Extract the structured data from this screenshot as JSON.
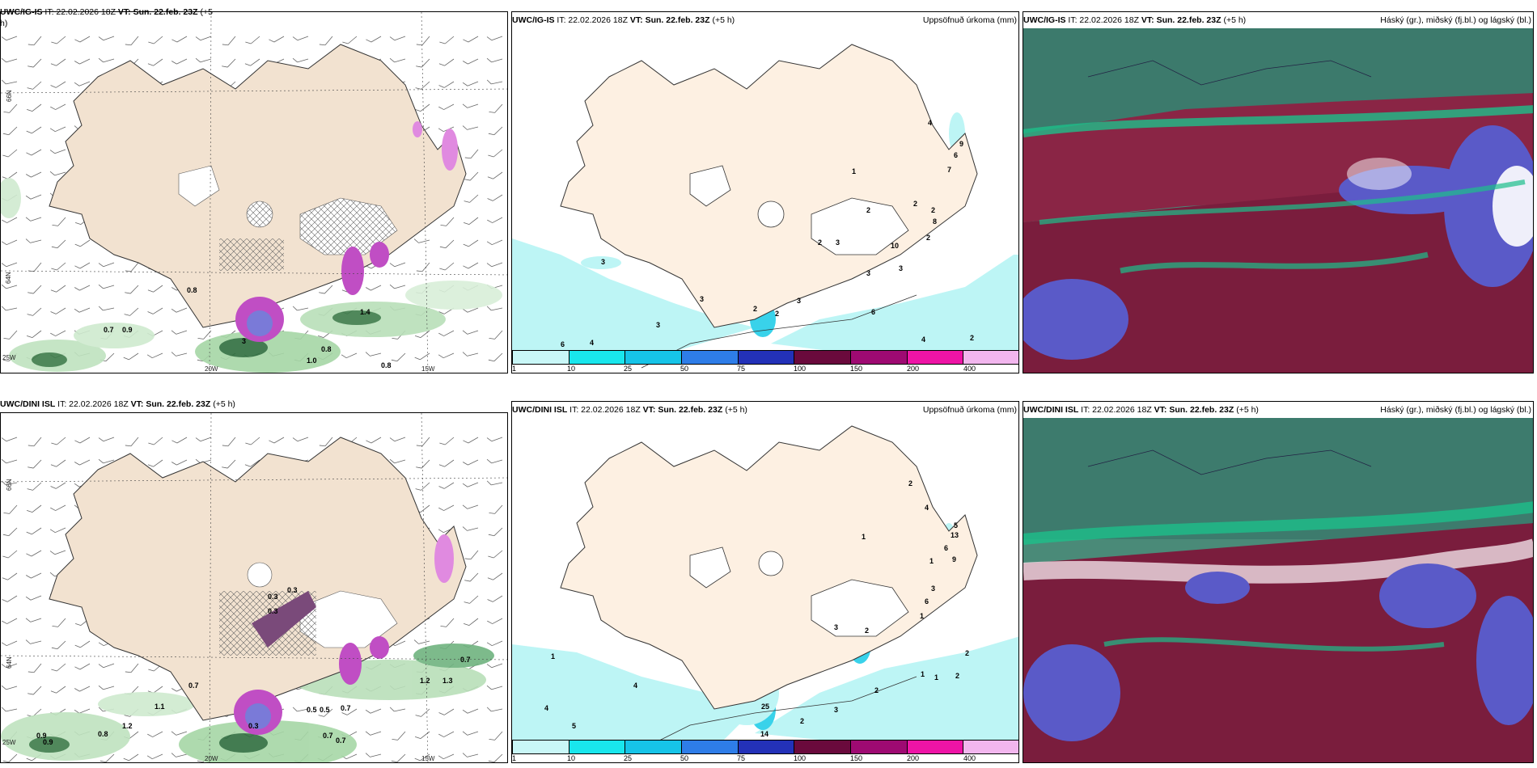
{
  "panels": [
    {
      "id": "ig-wind",
      "model": "UWC/IG-IS",
      "it": "IT: 22.02.2026 18Z",
      "vt": "VT: Sun. 22.feb. 23Z",
      "lead": "(+5",
      "lead2": "h)",
      "right": ""
    },
    {
      "id": "ig-precip",
      "model": "UWC/IG-IS",
      "it": "IT: 22.02.2026 18Z",
      "vt": "VT: Sun. 22.feb. 23Z",
      "lead": "(+5 h)",
      "right": "Uppsöfnuð úrkoma (mm)"
    },
    {
      "id": "ig-cloud",
      "model": "UWC/IG-IS",
      "it": "IT: 22.02.2026 18Z",
      "vt": "VT: Sun. 22.feb. 23Z",
      "lead": "(+5 h)",
      "right": "Háský (gr.), miðský (fj.bl.) og lágský (bl.)"
    },
    {
      "id": "dini-wind",
      "model": "UWC/DINI ISL",
      "it": "IT: 22.02.2026 18Z",
      "vt": "VT: Sun. 22.feb. 23Z",
      "lead": "(+5 h)",
      "right": ""
    },
    {
      "id": "dini-precip",
      "model": "UWC/DINI ISL",
      "it": "IT: 22.02.2026 18Z",
      "vt": "VT: Sun. 22.feb. 23Z",
      "lead": "(+5 h)",
      "right": "Uppsöfnuð úrkoma (mm)"
    },
    {
      "id": "dini-cloud",
      "model": "UWC/DINI ISL",
      "it": "IT: 22.02.2026 18Z",
      "vt": "VT: Sun. 22.feb. 23Z",
      "lead": "(+5 h)",
      "right": "Háský (gr.), miðský (fj.bl.) og lágský (bl.)"
    }
  ],
  "axis_labels": {
    "lat66": "66N",
    "lat64": "64N",
    "lon25": "25W",
    "lon20": "20W",
    "lon15": "15W"
  },
  "colorbar": {
    "ticks": [
      "1",
      "10",
      "25",
      "50",
      "75",
      "100",
      "150",
      "200",
      "400"
    ],
    "colors": [
      "#c9f7f7",
      "#19e6ec",
      "#16c4e8",
      "#2e7de8",
      "#2331b8",
      "#6a0a3c",
      "#9e0a72",
      "#ee14a6",
      "#f2b6ee"
    ]
  },
  "labels": {
    "ig_wind": [
      "0.8",
      "0.7",
      "0.9",
      "3",
      "1.0",
      "0.8",
      "0.8",
      "1.4"
    ],
    "ig_precip": [
      "1",
      "4",
      "9",
      "6",
      "7",
      "2",
      "8",
      "2",
      "2",
      "2",
      "10",
      "3",
      "3",
      "6",
      "4",
      "2",
      "3",
      "2",
      "3",
      "2",
      "3",
      "2",
      "3",
      "4",
      "3",
      "6"
    ],
    "dini_wind": [
      "0.3",
      "0.3",
      "0.3",
      "0.7",
      "1.1",
      "0.5",
      "0.5",
      "0.7",
      "0.7",
      "0.7",
      "1.2",
      "1.3",
      "0.9",
      "0.9",
      "0.8",
      "1.2",
      "0.3"
    ],
    "dini_precip": [
      "2",
      "4",
      "5",
      "13",
      "6",
      "9",
      "1",
      "3",
      "6",
      "1",
      "1",
      "2",
      "3",
      "2",
      "1",
      "2",
      "1",
      "1",
      "2",
      "4",
      "4",
      "5",
      "14",
      "25",
      "2",
      "3"
    ]
  },
  "colors": {
    "land": "#f9ecdc",
    "land_dark": "#eedfcc",
    "sea_green": "#3a8c5a",
    "cloud_red": "#7a1d3d",
    "cloud_blue": "#5a5ac8",
    "cloud_teal": "#1dbf8a"
  }
}
